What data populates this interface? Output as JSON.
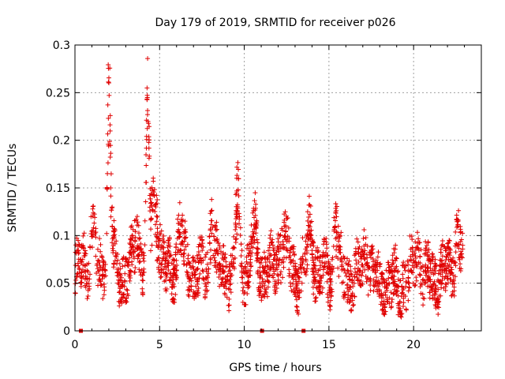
{
  "chart_data": {
    "type": "scatter",
    "title": "Day 179 of 2019, SRMTID for receiver p026",
    "xlabel": "GPS time / hours",
    "ylabel": "SRMTID / TECUs",
    "xlim": [
      0,
      24.0
    ],
    "ylim": [
      0,
      0.3
    ],
    "x_ticks": [
      0,
      5,
      10,
      15,
      20
    ],
    "x_tick_labels": [
      "0",
      "5",
      "10",
      "15",
      "20"
    ],
    "y_ticks": [
      0,
      0.05,
      0.1,
      0.15,
      0.2,
      0.25,
      0.3
    ],
    "y_tick_labels": [
      "0",
      "0.05",
      "0.1",
      "0.15",
      "0.2",
      "0.25",
      "0.3"
    ],
    "grid": true,
    "marker": "plus",
    "color": "#e00000",
    "gap_markers_x": [
      0.35,
      11.05,
      13.5
    ],
    "series": [
      {
        "name": "SRMTID",
        "x_range": [
          0.0,
          22.9
        ],
        "n_points": 2300,
        "bursts": [
          {
            "t": 0.6,
            "w": 0.25,
            "a": 0.02
          },
          {
            "t": 1.05,
            "w": 0.2,
            "a": 0.06
          },
          {
            "t": 2.0,
            "w": 0.12,
            "a": 0.2
          },
          {
            "t": 2.05,
            "w": 0.3,
            "a": 0.05
          },
          {
            "t": 3.7,
            "w": 0.3,
            "a": 0.05
          },
          {
            "t": 4.3,
            "w": 0.12,
            "a": 0.2
          },
          {
            "t": 4.6,
            "w": 0.2,
            "a": 0.08
          },
          {
            "t": 4.9,
            "w": 0.2,
            "a": 0.06
          },
          {
            "t": 6.2,
            "w": 0.25,
            "a": 0.05
          },
          {
            "t": 8.1,
            "w": 0.2,
            "a": 0.07
          },
          {
            "t": 9.6,
            "w": 0.15,
            "a": 0.1
          },
          {
            "t": 10.6,
            "w": 0.25,
            "a": 0.05
          },
          {
            "t": 12.3,
            "w": 0.3,
            "a": 0.05
          },
          {
            "t": 13.9,
            "w": 0.25,
            "a": 0.05
          },
          {
            "t": 15.4,
            "w": 0.15,
            "a": 0.08
          },
          {
            "t": 17.2,
            "w": 0.3,
            "a": 0.04
          },
          {
            "t": 20.2,
            "w": 0.3,
            "a": 0.04
          },
          {
            "t": 22.6,
            "w": 0.25,
            "a": 0.05
          }
        ],
        "baseline": [
          {
            "x": 0.0,
            "y": 0.055
          },
          {
            "x": 5.0,
            "y": 0.06
          },
          {
            "x": 10.0,
            "y": 0.06
          },
          {
            "x": 15.0,
            "y": 0.058
          },
          {
            "x": 18.5,
            "y": 0.045
          },
          {
            "x": 20.0,
            "y": 0.05
          },
          {
            "x": 22.9,
            "y": 0.06
          }
        ]
      }
    ]
  }
}
